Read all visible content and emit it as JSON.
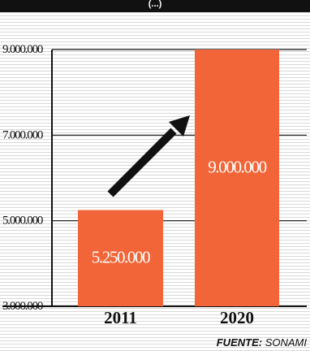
{
  "header": {
    "title_fragment": "(...)"
  },
  "chart_data": {
    "type": "bar",
    "categories": [
      "2011",
      "2020"
    ],
    "values": [
      5250000,
      9000000
    ],
    "value_labels": [
      "5.250.000",
      "9.000.000"
    ],
    "ylim": [
      3000000,
      9000000
    ],
    "yticks": [
      3000000,
      5000000,
      7000000,
      9000000
    ],
    "ytick_labels": [
      "3.000.000",
      "5.000.000",
      "7.000.000",
      "9.000.000"
    ],
    "grid": true,
    "bar_color": "#f26538",
    "annotation": "upward-arrow"
  },
  "source": {
    "prefix": "FUENTE:",
    "name": "SONAMI"
  }
}
